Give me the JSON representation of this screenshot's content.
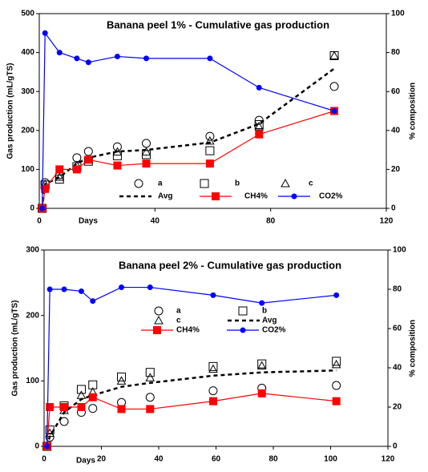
{
  "chart_data": [
    {
      "type": "scatter",
      "title": "Banana peel 1%   - Cumulative gas production",
      "x_label": "Days",
      "y_label": "Gas production (mL/gTS)",
      "y2_label": "% composition",
      "x": [
        1,
        2,
        7,
        13,
        17,
        27,
        37,
        59,
        76,
        102
      ],
      "xlim": [
        0,
        120
      ],
      "xticks": [
        0,
        40,
        80,
        120
      ],
      "ylim": [
        0,
        500
      ],
      "yticks": [
        0,
        100,
        200,
        300,
        400,
        500
      ],
      "y2lim": [
        0,
        100
      ],
      "y2ticks": [
        0,
        20,
        40,
        60,
        80,
        100
      ],
      "series": [
        {
          "name": "a",
          "color": "#000000",
          "marker": "circle",
          "line": "none",
          "values": [
            0,
            66,
            86,
            130,
            146,
            158,
            167,
            185,
            226,
            313
          ]
        },
        {
          "name": "b",
          "color": "#000000",
          "marker": "square",
          "line": "none",
          "values": [
            0,
            60,
            75,
            107,
            121,
            135,
            138,
            148,
            215,
            392
          ]
        },
        {
          "name": "c",
          "color": "#000000",
          "marker": "triangle",
          "line": "none",
          "values": [
            0,
            62,
            80,
            110,
            125,
            145,
            145,
            173,
            210,
            392
          ]
        },
        {
          "name": "Avg",
          "color": "#000000",
          "marker": "none",
          "line": "dashed",
          "values": [
            0,
            62,
            80,
            115,
            130,
            146,
            150,
            169,
            217,
            359
          ]
        },
        {
          "name": "CH4%",
          "color": "#ff0000",
          "marker": "filled-square",
          "line": "solid",
          "axis": "y2",
          "values": [
            0,
            10,
            20,
            20,
            25,
            22,
            23,
            23,
            38,
            50
          ]
        },
        {
          "name": "CO2%",
          "color": "#0000ff",
          "marker": "filled-circle",
          "line": "solid",
          "axis": "y2",
          "values": [
            0,
            90,
            80,
            77,
            75,
            78,
            77,
            77,
            62,
            50
          ]
        }
      ]
    },
    {
      "type": "scatter",
      "title": "Banana peel 2% - Cumulative gas production",
      "x_label": "Days",
      "y_label": "Gas production (mL/gTS)",
      "y2_label": "% composition",
      "x": [
        1,
        2,
        7,
        13,
        17,
        27,
        37,
        59,
        76,
        102
      ],
      "xlim": [
        0,
        120
      ],
      "xticks": [
        0,
        20,
        40,
        60,
        80,
        100,
        120
      ],
      "ylim": [
        0,
        300
      ],
      "yticks": [
        0,
        100,
        200,
        300
      ],
      "y2lim": [
        0,
        100
      ],
      "y2ticks": [
        0,
        20,
        40,
        60,
        80,
        100
      ],
      "series": [
        {
          "name": "a",
          "color": "#000000",
          "marker": "circle",
          "line": "none",
          "values": [
            0,
            14,
            38,
            52,
            58,
            67,
            75,
            85,
            89,
            93
          ]
        },
        {
          "name": "b",
          "color": "#000000",
          "marker": "square",
          "line": "none",
          "values": [
            0,
            25,
            62,
            87,
            94,
            106,
            113,
            122,
            126,
            130
          ]
        },
        {
          "name": "c",
          "color": "#000000",
          "marker": "triangle",
          "line": "none",
          "values": [
            0,
            20,
            55,
            78,
            83,
            100,
            105,
            118,
            123,
            125
          ]
        },
        {
          "name": "Avg",
          "color": "#000000",
          "marker": "none",
          "line": "dashed",
          "values": [
            0,
            15,
            52,
            72,
            78,
            91,
            97,
            108,
            113,
            116
          ]
        },
        {
          "name": "CH4%",
          "color": "#ff0000",
          "marker": "filled-square",
          "line": "solid",
          "axis": "y2",
          "values": [
            0,
            20,
            20,
            20,
            25,
            19,
            19,
            23,
            27,
            23
          ]
        },
        {
          "name": "CO2%",
          "color": "#0000ff",
          "marker": "filled-circle",
          "line": "solid",
          "axis": "y2",
          "values": [
            0,
            80,
            80,
            79,
            74,
            81,
            81,
            77,
            73,
            77
          ]
        }
      ]
    }
  ]
}
